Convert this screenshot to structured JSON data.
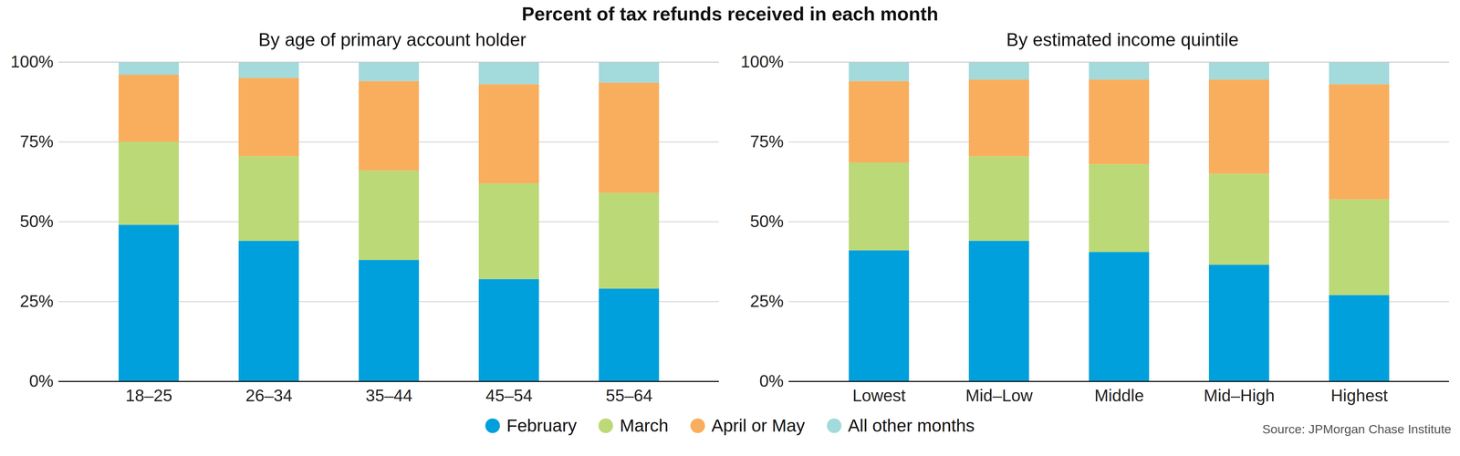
{
  "title": "Percent of tax refunds received in each month",
  "source": "Source: JPMorgan Chase Institute",
  "chart_data": [
    {
      "type": "bar",
      "stacked": true,
      "grid": true,
      "legend": "bottom",
      "title": "By age of primary account holder",
      "categories": [
        "18–25",
        "26–34",
        "35–44",
        "45–54",
        "55–64"
      ],
      "series": [
        {
          "name": "February",
          "color": "#00a0dc",
          "values": [
            49,
            44,
            38,
            32,
            29
          ]
        },
        {
          "name": "March",
          "color": "#bcd977",
          "values": [
            26,
            26.5,
            28,
            30,
            30
          ]
        },
        {
          "name": "April or May",
          "color": "#f9ae5d",
          "values": [
            21,
            24.5,
            28,
            31,
            34.5
          ]
        },
        {
          "name": "All other months",
          "color": "#a3dadc",
          "values": [
            4,
            5,
            6,
            7,
            6.5
          ]
        }
      ],
      "ylim": [
        0,
        100
      ],
      "yticks": [
        {
          "value": 0,
          "label": "0%"
        },
        {
          "value": 25,
          "label": "25%"
        },
        {
          "value": 50,
          "label": "50%"
        },
        {
          "value": 75,
          "label": "75%"
        },
        {
          "value": 100,
          "label": "100%"
        }
      ]
    },
    {
      "type": "bar",
      "stacked": true,
      "grid": true,
      "legend": "bottom",
      "title": "By estimated income quintile",
      "categories": [
        "Lowest",
        "Mid–Low",
        "Middle",
        "Mid–High",
        "Highest"
      ],
      "series": [
        {
          "name": "February",
          "color": "#00a0dc",
          "values": [
            41,
            44,
            40.5,
            36.5,
            27
          ]
        },
        {
          "name": "March",
          "color": "#bcd977",
          "values": [
            27.5,
            26.5,
            27.5,
            28.5,
            30
          ]
        },
        {
          "name": "April or May",
          "color": "#f9ae5d",
          "values": [
            25.5,
            24,
            26.5,
            29.5,
            36
          ]
        },
        {
          "name": "All other months",
          "color": "#a3dadc",
          "values": [
            6,
            5.5,
            5.5,
            5.5,
            7
          ]
        }
      ],
      "ylim": [
        0,
        100
      ],
      "yticks": [
        {
          "value": 0,
          "label": "0%"
        },
        {
          "value": 25,
          "label": "25%"
        },
        {
          "value": 50,
          "label": "50%"
        },
        {
          "value": 75,
          "label": "75%"
        },
        {
          "value": 100,
          "label": "100%"
        }
      ]
    }
  ]
}
